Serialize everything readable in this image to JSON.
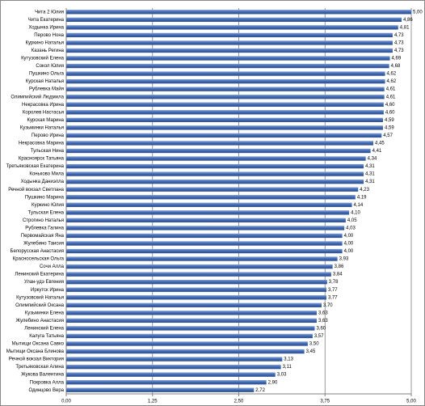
{
  "chart_data": {
    "type": "bar",
    "orientation": "horizontal",
    "color": "#4472c4",
    "categories": [
      "Чита 2 Юлия",
      "Чита Екатерина",
      "Ходынка Ирина",
      "Перово Нона",
      "Куркино Наталья",
      "Казань Регина",
      "Кутузовский Елена",
      "Сокол Юлия",
      "Пушкино Ольга",
      "Курская Наталья",
      "Рублевка Майя",
      "Олимпийский Людмила",
      "Некрасовка Ирина",
      "Королев Настасья",
      "Курская Марина",
      "Кузьминки Наталья",
      "Перово Ирина",
      "Некрасовка Марина",
      "Тульская Нина",
      "Красноярск Татьяна",
      "Третьяковская Екатерина",
      "Коньково Мила",
      "Ходынка Даниэлла",
      "Речной вокзал Светлана",
      "Пушкино Марина",
      "Куркино Юлия",
      "Тульская Елена",
      "Строгино Наталья",
      "Рублевка Галина",
      "Первомайская Яна",
      "Жулебино Таисия",
      "Белорусская Анастасия",
      "Красносельская Ольга",
      "Сочи Алла",
      "Ленинский Екатерина",
      "Улан-удэ Евгения",
      "Иркутск Ирина",
      "Кутузовский Наталья",
      "Олимпийский Оксана",
      "Кузьминки Елена",
      "Жулебино Анастасия",
      "Ленинский Елена",
      "Калуга Татьяна",
      "Мытищи Оксана Савко",
      "Мытищи Оксана Блинова",
      "Речной вокзал Виктория",
      "Третьяковская Алина",
      "Жукова Валентина",
      "Покровка Алла",
      "Одинцово Вера"
    ],
    "values": [
      5.0,
      4.86,
      4.81,
      4.73,
      4.73,
      4.73,
      4.69,
      4.68,
      4.62,
      4.62,
      4.61,
      4.61,
      4.6,
      4.6,
      4.59,
      4.59,
      4.57,
      4.45,
      4.41,
      4.34,
      4.31,
      4.31,
      4.31,
      4.23,
      4.19,
      4.14,
      4.1,
      4.05,
      4.03,
      4.0,
      4.0,
      4.0,
      3.93,
      3.86,
      3.84,
      3.78,
      3.77,
      3.77,
      3.7,
      3.63,
      3.63,
      3.6,
      3.57,
      3.5,
      3.45,
      3.13,
      3.11,
      3.03,
      2.9,
      2.72
    ],
    "value_labels": [
      "5,00",
      "4,86",
      "4,81",
      "4,73",
      "4,73",
      "4,73",
      "4,69",
      "4,68",
      "4,62",
      "4,62",
      "4,61",
      "4,61",
      "4,60",
      "4,60",
      "4,59",
      "4,59",
      "4,57",
      "4,45",
      "4,41",
      "4,34",
      "4,31",
      "4,31",
      "4,31",
      "4,23",
      "4,19",
      "4,14",
      "4,10",
      "4,05",
      "4,03",
      "4,00",
      "4,00",
      "4,00",
      "3,93",
      "3,86",
      "3,84",
      "3,78",
      "3,77",
      "3,77",
      "3,70",
      "3,63",
      "3,63",
      "3,60",
      "3,57",
      "3,50",
      "3,45",
      "3,13",
      "3,11",
      "3,03",
      "2,90",
      "2,72"
    ],
    "xlim": [
      0,
      5
    ],
    "xticks": [
      {
        "value": 0,
        "label": "0,00"
      },
      {
        "value": 1.25,
        "label": "1,25"
      },
      {
        "value": 2.5,
        "label": "2,50"
      },
      {
        "value": 3.75,
        "label": "3,75"
      },
      {
        "value": 5,
        "label": "5,00"
      }
    ],
    "grid": true
  }
}
